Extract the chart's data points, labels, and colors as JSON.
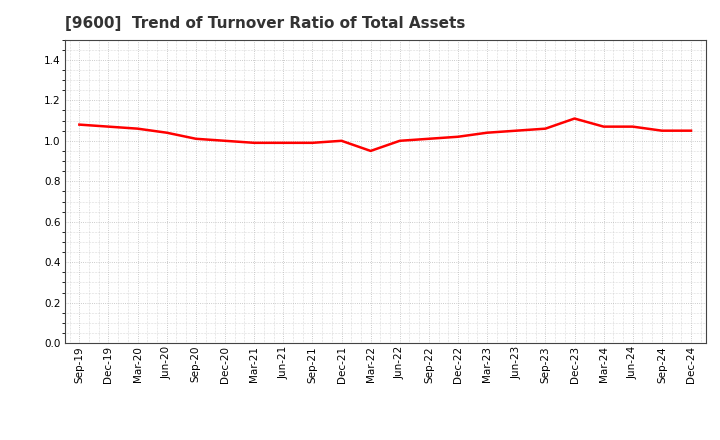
{
  "title": "[9600]  Trend of Turnover Ratio of Total Assets",
  "x_labels": [
    "Sep-19",
    "Dec-19",
    "Mar-20",
    "Jun-20",
    "Sep-20",
    "Dec-20",
    "Mar-21",
    "Jun-21",
    "Sep-21",
    "Dec-21",
    "Mar-22",
    "Jun-22",
    "Sep-22",
    "Dec-22",
    "Mar-23",
    "Jun-23",
    "Sep-23",
    "Dec-23",
    "Mar-24",
    "Jun-24",
    "Sep-24",
    "Dec-24"
  ],
  "y_values": [
    1.08,
    1.07,
    1.06,
    1.04,
    1.01,
    1.0,
    0.99,
    0.99,
    0.99,
    1.0,
    0.95,
    1.0,
    1.01,
    1.02,
    1.04,
    1.05,
    1.06,
    1.11,
    1.07,
    1.07,
    1.05,
    1.05
  ],
  "line_color": "#FF0000",
  "line_width": 1.8,
  "ylim": [
    0.0,
    1.5
  ],
  "yticks": [
    0.0,
    0.2,
    0.4,
    0.6,
    0.8,
    1.0,
    1.2,
    1.4
  ],
  "background_color": "#ffffff",
  "plot_bg_color": "#ffffff",
  "grid_color": "#bbbbbb",
  "title_fontsize": 11,
  "tick_fontsize": 7.5,
  "title_color": "#333333"
}
